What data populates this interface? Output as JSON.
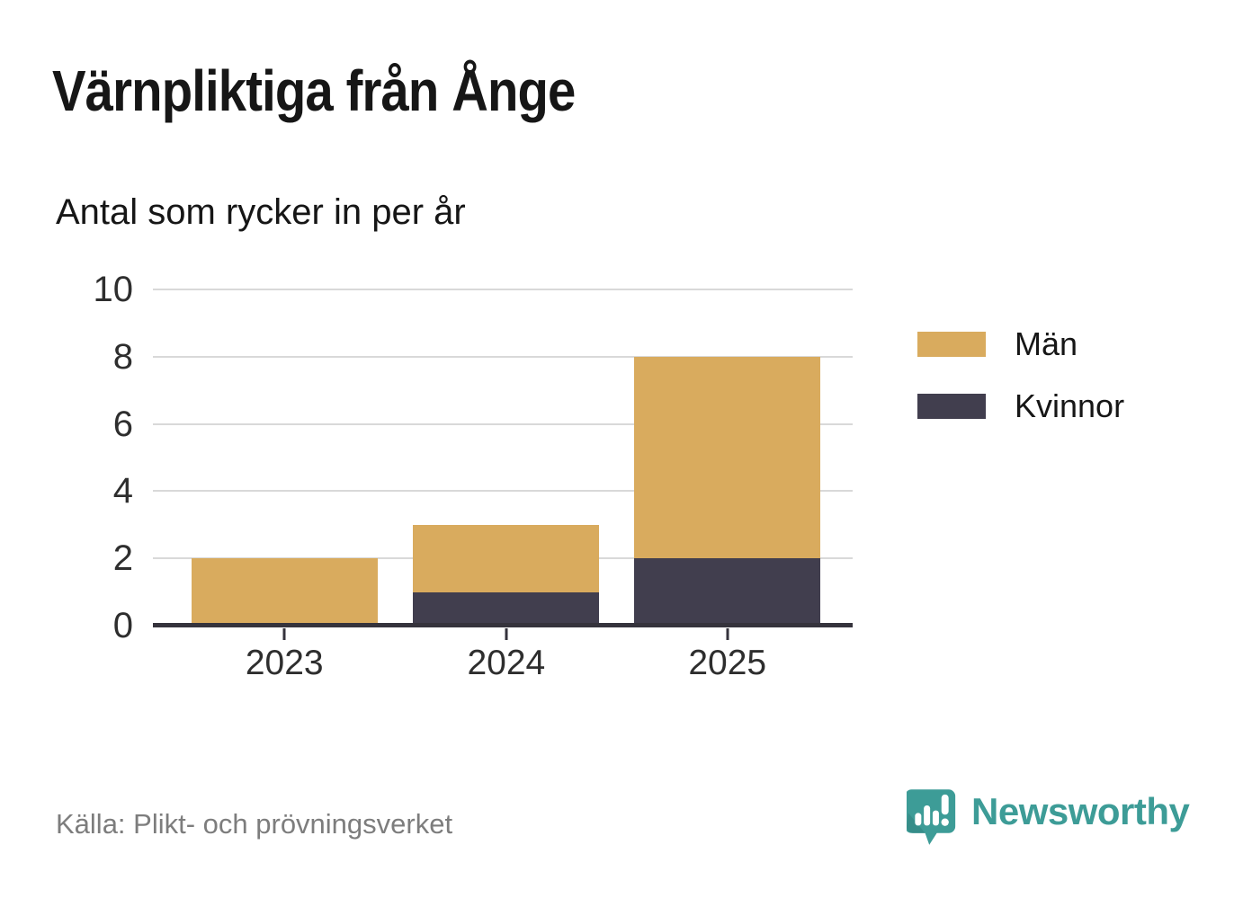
{
  "header": {
    "title": "Värnpliktiga från Ånge",
    "subtitle": "Antal som rycker in per år"
  },
  "chart_data": {
    "type": "bar",
    "stacked": true,
    "title": "Värnpliktiga från Ånge",
    "subtitle": "Antal som rycker in per år",
    "categories": [
      "2023",
      "2024",
      "2025"
    ],
    "series": [
      {
        "name": "Män",
        "color": "#d9ab5e",
        "values": [
          2,
          2,
          6
        ]
      },
      {
        "name": "Kvinnor",
        "color": "#413e4e",
        "values": [
          0,
          1,
          2
        ]
      }
    ],
    "stack_totals": [
      2,
      3,
      8
    ],
    "stack_bottom_to_top": [
      "Kvinnor",
      "Män"
    ],
    "xlabel": "",
    "ylabel": "",
    "ylim": [
      0,
      10
    ],
    "yticks": [
      0,
      2,
      4,
      6,
      8,
      10
    ],
    "grid": true,
    "legend_position": "right",
    "bar_width_frac": 0.266,
    "band_centers_frac": [
      0.188,
      0.505,
      0.821
    ]
  },
  "legend": {
    "items": [
      {
        "label": "Män",
        "color": "#d9ab5e"
      },
      {
        "label": "Kvinnor",
        "color": "#413e4e"
      }
    ]
  },
  "footer": {
    "source": "Källa: Plikt- och prövningsverket",
    "brand": "Newsworthy"
  },
  "colors": {
    "gold": "#d9ab5e",
    "dark_slate": "#413e4e",
    "gridline": "#d9d9d9",
    "axis": "#35333c",
    "text": "#161616",
    "tick_label": "#2e2e2e",
    "source_gray": "#7d7d7d",
    "brand_teal": "#3d9c97"
  }
}
